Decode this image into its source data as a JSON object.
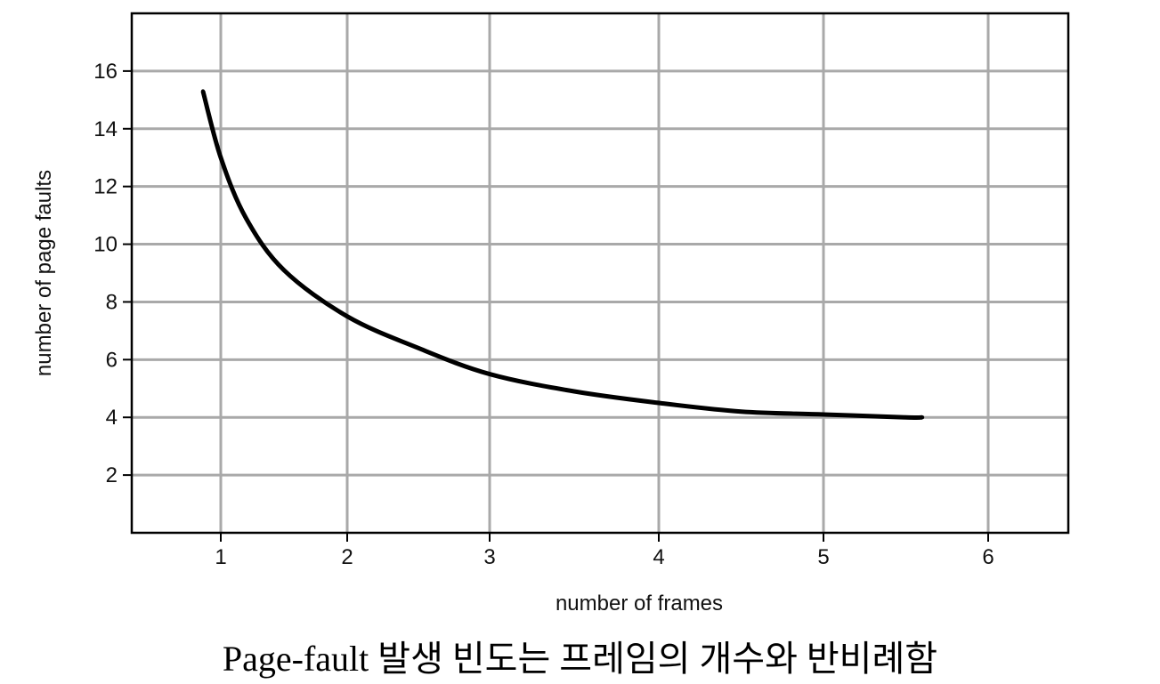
{
  "caption": "Page-fault 발생 빈도는 프레임의 개수와 반비례함",
  "chart_data": {
    "type": "line",
    "xlabel": "number of frames",
    "ylabel": "number of page faults",
    "x_ticks": [
      1,
      2,
      3,
      4,
      5,
      6
    ],
    "y_ticks": [
      2,
      4,
      6,
      8,
      10,
      12,
      14,
      16
    ],
    "xlim": [
      0.5,
      6.5
    ],
    "ylim": [
      0,
      18
    ],
    "grid": true,
    "series": [
      {
        "color": "#000000",
        "x": [
          0.9,
          1.0,
          1.2,
          1.5,
          2.0,
          2.5,
          3.0,
          3.5,
          4.0,
          4.5,
          5.0,
          5.5,
          5.6
        ],
        "y": [
          15.3,
          13.0,
          10.9,
          9.1,
          7.5,
          6.4,
          5.5,
          4.9,
          4.5,
          4.2,
          4.1,
          4.0,
          4.0
        ]
      }
    ]
  }
}
